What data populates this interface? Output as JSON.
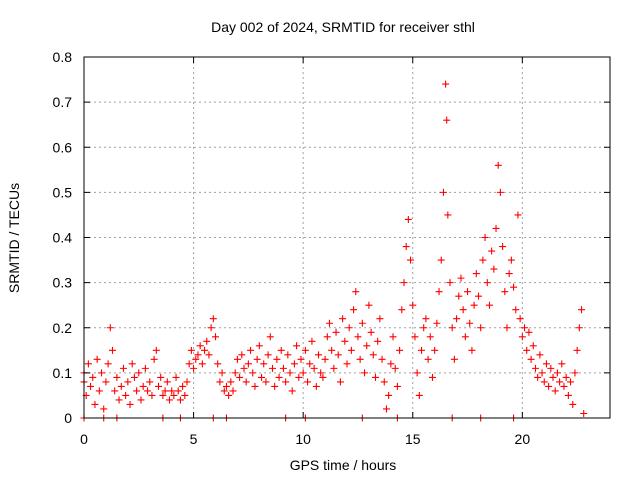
{
  "chart_data": {
    "type": "scatter",
    "title": "Day 002 of 2024, SRMTID for receiver sthl",
    "xlabel": "GPS time / hours",
    "ylabel": "SRMTID / TECUs",
    "xlim": [
      0,
      24
    ],
    "ylim": [
      0,
      0.8
    ],
    "xticks": [
      0,
      5,
      10,
      15,
      20
    ],
    "yticks": [
      0,
      0.1,
      0.2,
      0.3,
      0.4,
      0.5,
      0.6,
      0.7,
      0.8
    ],
    "grid": true,
    "marker": "+",
    "color": "#ff0000",
    "series": [
      {
        "name": "SRMTID",
        "note": "approximate envelope read from the dense scatter (hour, SRMTID); individual points are too numerous to read exactly",
        "points": [
          [
            0.0,
            0.08
          ],
          [
            0.0,
            0.1
          ],
          [
            0.1,
            0.05
          ],
          [
            0.2,
            0.12
          ],
          [
            0.3,
            0.07
          ],
          [
            0.4,
            0.09
          ],
          [
            0.5,
            0.03
          ],
          [
            0.6,
            0.13
          ],
          [
            0.7,
            0.06
          ],
          [
            0.8,
            0.1
          ],
          [
            0.9,
            0.02
          ],
          [
            1.0,
            0.08
          ],
          [
            1.1,
            0.12
          ],
          [
            1.2,
            0.2
          ],
          [
            1.3,
            0.15
          ],
          [
            1.4,
            0.06
          ],
          [
            1.5,
            0.09
          ],
          [
            1.6,
            0.04
          ],
          [
            1.7,
            0.07
          ],
          [
            1.8,
            0.11
          ],
          [
            1.9,
            0.05
          ],
          [
            2.0,
            0.08
          ],
          [
            2.1,
            0.03
          ],
          [
            2.2,
            0.12
          ],
          [
            2.3,
            0.09
          ],
          [
            2.4,
            0.06
          ],
          [
            2.5,
            0.1
          ],
          [
            2.6,
            0.04
          ],
          [
            2.7,
            0.07
          ],
          [
            2.8,
            0.11
          ],
          [
            2.9,
            0.06
          ],
          [
            3.0,
            0.08
          ],
          [
            3.1,
            0.05
          ],
          [
            3.2,
            0.13
          ],
          [
            3.3,
            0.15
          ],
          [
            3.4,
            0.07
          ],
          [
            3.5,
            0.09
          ],
          [
            3.6,
            0.05
          ],
          [
            3.7,
            0.06
          ],
          [
            3.8,
            0.08
          ],
          [
            3.9,
            0.04
          ],
          [
            4.0,
            0.06
          ],
          [
            4.1,
            0.05
          ],
          [
            4.2,
            0.09
          ],
          [
            4.3,
            0.06
          ],
          [
            4.4,
            0.04
          ],
          [
            4.5,
            0.07
          ],
          [
            4.6,
            0.05
          ],
          [
            4.7,
            0.08
          ],
          [
            4.8,
            0.12
          ],
          [
            4.9,
            0.15
          ],
          [
            5.0,
            0.11
          ],
          [
            5.1,
            0.13
          ],
          [
            5.2,
            0.14
          ],
          [
            5.3,
            0.16
          ],
          [
            5.4,
            0.12
          ],
          [
            5.5,
            0.15
          ],
          [
            5.6,
            0.17
          ],
          [
            5.7,
            0.14
          ],
          [
            5.8,
            0.2
          ],
          [
            5.9,
            0.22
          ],
          [
            6.0,
            0.18
          ],
          [
            6.1,
            0.12
          ],
          [
            6.2,
            0.08
          ],
          [
            6.3,
            0.1
          ],
          [
            6.4,
            0.06
          ],
          [
            6.5,
            0.07
          ],
          [
            6.6,
            0.05
          ],
          [
            6.7,
            0.08
          ],
          [
            6.8,
            0.06
          ],
          [
            6.9,
            0.1
          ],
          [
            7.0,
            0.13
          ],
          [
            7.1,
            0.09
          ],
          [
            7.2,
            0.14
          ],
          [
            7.3,
            0.11
          ],
          [
            7.4,
            0.08
          ],
          [
            7.5,
            0.12
          ],
          [
            7.6,
            0.15
          ],
          [
            7.7,
            0.1
          ],
          [
            7.8,
            0.07
          ],
          [
            7.9,
            0.13
          ],
          [
            8.0,
            0.16
          ],
          [
            8.1,
            0.09
          ],
          [
            8.2,
            0.12
          ],
          [
            8.3,
            0.08
          ],
          [
            8.4,
            0.14
          ],
          [
            8.5,
            0.18
          ],
          [
            8.6,
            0.11
          ],
          [
            8.7,
            0.07
          ],
          [
            8.8,
            0.13
          ],
          [
            8.9,
            0.09
          ],
          [
            9.0,
            0.15
          ],
          [
            9.1,
            0.11
          ],
          [
            9.2,
            0.08
          ],
          [
            9.3,
            0.14
          ],
          [
            9.4,
            0.1
          ],
          [
            9.5,
            0.06
          ],
          [
            9.6,
            0.12
          ],
          [
            9.7,
            0.16
          ],
          [
            9.8,
            0.09
          ],
          [
            9.9,
            0.13
          ],
          [
            10.0,
            0.1
          ],
          [
            10.1,
            0.15
          ],
          [
            10.2,
            0.08
          ],
          [
            10.3,
            0.12
          ],
          [
            10.4,
            0.17
          ],
          [
            10.5,
            0.11
          ],
          [
            10.6,
            0.07
          ],
          [
            10.7,
            0.14
          ],
          [
            10.8,
            0.1
          ],
          [
            10.9,
            0.09
          ],
          [
            11.0,
            0.13
          ],
          [
            11.1,
            0.18
          ],
          [
            11.2,
            0.21
          ],
          [
            11.3,
            0.15
          ],
          [
            11.4,
            0.11
          ],
          [
            11.5,
            0.19
          ],
          [
            11.6,
            0.14
          ],
          [
            11.7,
            0.08
          ],
          [
            11.8,
            0.22
          ],
          [
            11.9,
            0.17
          ],
          [
            12.0,
            0.12
          ],
          [
            12.1,
            0.2
          ],
          [
            12.2,
            0.15
          ],
          [
            12.3,
            0.24
          ],
          [
            12.4,
            0.28
          ],
          [
            12.5,
            0.18
          ],
          [
            12.6,
            0.13
          ],
          [
            12.7,
            0.21
          ],
          [
            12.8,
            0.1
          ],
          [
            12.9,
            0.16
          ],
          [
            13.0,
            0.25
          ],
          [
            13.1,
            0.19
          ],
          [
            13.2,
            0.14
          ],
          [
            13.3,
            0.09
          ],
          [
            13.4,
            0.17
          ],
          [
            13.5,
            0.22
          ],
          [
            13.6,
            0.13
          ],
          [
            13.7,
            0.08
          ],
          [
            13.8,
            0.02
          ],
          [
            13.9,
            0.05
          ],
          [
            14.0,
            0.12
          ],
          [
            14.1,
            0.18
          ],
          [
            14.2,
            0.11
          ],
          [
            14.3,
            0.07
          ],
          [
            14.4,
            0.15
          ],
          [
            14.5,
            0.24
          ],
          [
            14.6,
            0.3
          ],
          [
            14.7,
            0.38
          ],
          [
            14.8,
            0.44
          ],
          [
            14.9,
            0.35
          ],
          [
            15.0,
            0.25
          ],
          [
            15.1,
            0.18
          ],
          [
            15.2,
            0.1
          ],
          [
            15.3,
            0.05
          ],
          [
            15.4,
            0.15
          ],
          [
            15.5,
            0.2
          ],
          [
            15.6,
            0.22
          ],
          [
            15.7,
            0.13
          ],
          [
            15.8,
            0.18
          ],
          [
            15.9,
            0.09
          ],
          [
            16.0,
            0.15
          ],
          [
            16.1,
            0.21
          ],
          [
            16.2,
            0.28
          ],
          [
            16.3,
            0.35
          ],
          [
            16.4,
            0.5
          ],
          [
            16.5,
            0.74
          ],
          [
            16.55,
            0.66
          ],
          [
            16.6,
            0.45
          ],
          [
            16.7,
            0.3
          ],
          [
            16.8,
            0.2
          ],
          [
            16.9,
            0.13
          ],
          [
            17.0,
            0.22
          ],
          [
            17.1,
            0.27
          ],
          [
            17.2,
            0.31
          ],
          [
            17.3,
            0.24
          ],
          [
            17.4,
            0.18
          ],
          [
            17.5,
            0.28
          ],
          [
            17.6,
            0.21
          ],
          [
            17.7,
            0.15
          ],
          [
            17.8,
            0.25
          ],
          [
            17.9,
            0.32
          ],
          [
            18.0,
            0.27
          ],
          [
            18.1,
            0.2
          ],
          [
            18.2,
            0.35
          ],
          [
            18.3,
            0.4
          ],
          [
            18.4,
            0.3
          ],
          [
            18.5,
            0.25
          ],
          [
            18.6,
            0.37
          ],
          [
            18.7,
            0.33
          ],
          [
            18.8,
            0.42
          ],
          [
            18.9,
            0.56
          ],
          [
            19.0,
            0.5
          ],
          [
            19.1,
            0.38
          ],
          [
            19.2,
            0.28
          ],
          [
            19.3,
            0.2
          ],
          [
            19.4,
            0.32
          ],
          [
            19.5,
            0.35
          ],
          [
            19.6,
            0.29
          ],
          [
            19.7,
            0.24
          ],
          [
            19.8,
            0.45
          ],
          [
            19.9,
            0.22
          ],
          [
            20.0,
            0.18
          ],
          [
            20.1,
            0.2
          ],
          [
            20.2,
            0.15
          ],
          [
            20.3,
            0.19
          ],
          [
            20.4,
            0.13
          ],
          [
            20.5,
            0.16
          ],
          [
            20.6,
            0.11
          ],
          [
            20.7,
            0.09
          ],
          [
            20.8,
            0.14
          ],
          [
            20.9,
            0.1
          ],
          [
            21.0,
            0.08
          ],
          [
            21.1,
            0.12
          ],
          [
            21.2,
            0.07
          ],
          [
            21.3,
            0.11
          ],
          [
            21.4,
            0.09
          ],
          [
            21.5,
            0.06
          ],
          [
            21.6,
            0.1
          ],
          [
            21.7,
            0.08
          ],
          [
            21.8,
            0.12
          ],
          [
            21.9,
            0.07
          ],
          [
            22.0,
            0.09
          ],
          [
            22.1,
            0.05
          ],
          [
            22.2,
            0.08
          ],
          [
            22.3,
            0.03
          ],
          [
            22.4,
            0.1
          ],
          [
            22.5,
            0.15
          ],
          [
            22.6,
            0.2
          ],
          [
            22.7,
            0.24
          ],
          [
            22.8,
            0.01
          ],
          [
            0.0,
            0.0
          ],
          [
            0.9,
            0.0
          ],
          [
            1.5,
            0.0
          ],
          [
            3.6,
            0.0
          ],
          [
            4.4,
            0.0
          ],
          [
            5.9,
            0.0
          ],
          [
            6.5,
            0.0
          ],
          [
            9.2,
            0.0
          ],
          [
            10.1,
            0.0
          ],
          [
            12.7,
            0.0
          ],
          [
            14.3,
            0.0
          ],
          [
            16.8,
            0.0
          ],
          [
            18.1,
            0.0
          ],
          [
            19.6,
            0.0
          ]
        ]
      }
    ]
  }
}
